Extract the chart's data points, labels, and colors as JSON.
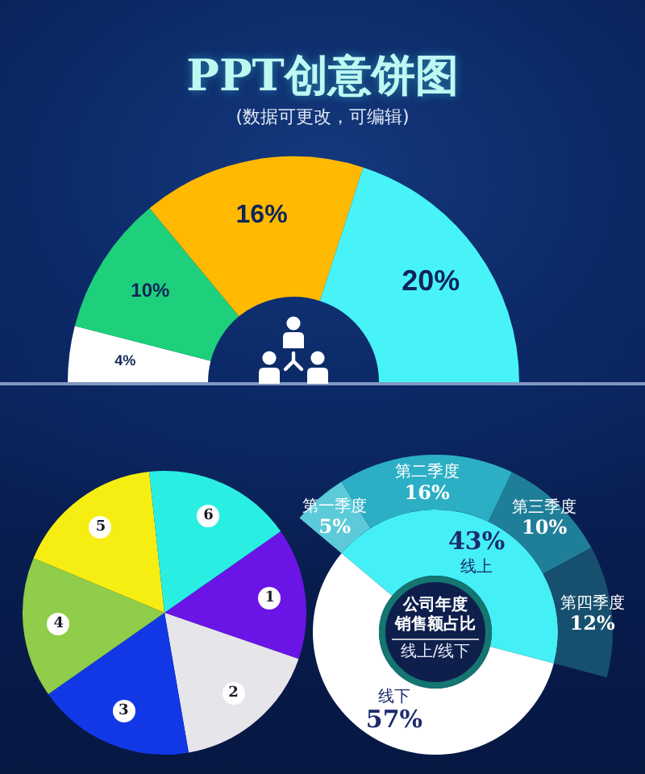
{
  "chart_data": [
    {
      "type": "donut",
      "title": "PPT创意饼图",
      "subtitle": "(数据可更改，可编辑)",
      "categories": [
        null,
        null,
        null,
        null
      ],
      "values": [
        4,
        10,
        16,
        20
      ],
      "colors": [
        "#ffffff",
        "#1ed07c",
        "#ffb900",
        "#48f3f8"
      ],
      "value_labels": [
        "4%",
        "10%",
        "16%",
        "20%"
      ]
    },
    {
      "type": "pie",
      "categories": [
        "1",
        "2",
        "3",
        "4",
        "5",
        "6"
      ],
      "values": [
        15,
        17,
        18,
        16,
        17,
        17
      ],
      "colors": [
        "#6a14e6",
        "#e6e6ea",
        "#1238e6",
        "#8fcd4a",
        "#f6ee12",
        "#2aeee2"
      ]
    },
    {
      "type": "donut",
      "title": "公司年度销售额占比",
      "subtitle": "线上/线下",
      "categories": [
        "线上",
        "线下"
      ],
      "values": [
        43,
        57
      ],
      "colors": [
        "#45eff6",
        "#ffffff"
      ],
      "value_labels": [
        "43%",
        "57%"
      ]
    },
    {
      "type": "donut",
      "categories": [
        "第一季度",
        "第二季度",
        "第三季度",
        "第四季度"
      ],
      "values": [
        5,
        16,
        10,
        12
      ],
      "colors": [
        "#5ccad8",
        "#2cafc5",
        "#1f7f99",
        "#17506f"
      ],
      "value_labels": [
        "5%",
        "16%",
        "10%",
        "12%"
      ]
    }
  ]
}
